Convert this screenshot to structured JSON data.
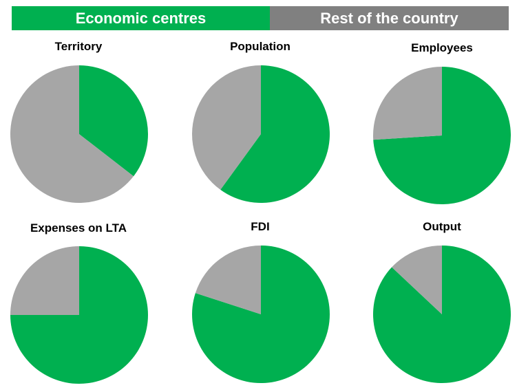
{
  "legend": {
    "economic_label": "Economic centres",
    "rest_label": "Rest of the country"
  },
  "colors": {
    "economic": "#00b050",
    "rest": "#a6a6a6",
    "rest_legend": "#808080"
  },
  "chart_data": [
    {
      "type": "pie",
      "title": "Territory",
      "labels": [
        "Economic centres",
        "Rest of the country"
      ],
      "values": [
        35.5,
        64.5
      ]
    },
    {
      "type": "pie",
      "title": "Population",
      "labels": [
        "Economic centres",
        "Rest of the country"
      ],
      "values": [
        60,
        40
      ]
    },
    {
      "type": "pie",
      "title": "Employees",
      "labels": [
        "Economic centres",
        "Rest of the country"
      ],
      "values": [
        74,
        26
      ]
    },
    {
      "type": "pie",
      "title": "Expenses on LTA",
      "labels": [
        "Economic centres",
        "Rest of the country"
      ],
      "values": [
        75,
        25
      ]
    },
    {
      "type": "pie",
      "title": "FDI",
      "labels": [
        "Economic centres",
        "Rest of the country"
      ],
      "values": [
        80,
        20
      ]
    },
    {
      "type": "pie",
      "title": "Output",
      "labels": [
        "Economic centres",
        "Rest of the country"
      ],
      "values": [
        87,
        13
      ]
    }
  ]
}
